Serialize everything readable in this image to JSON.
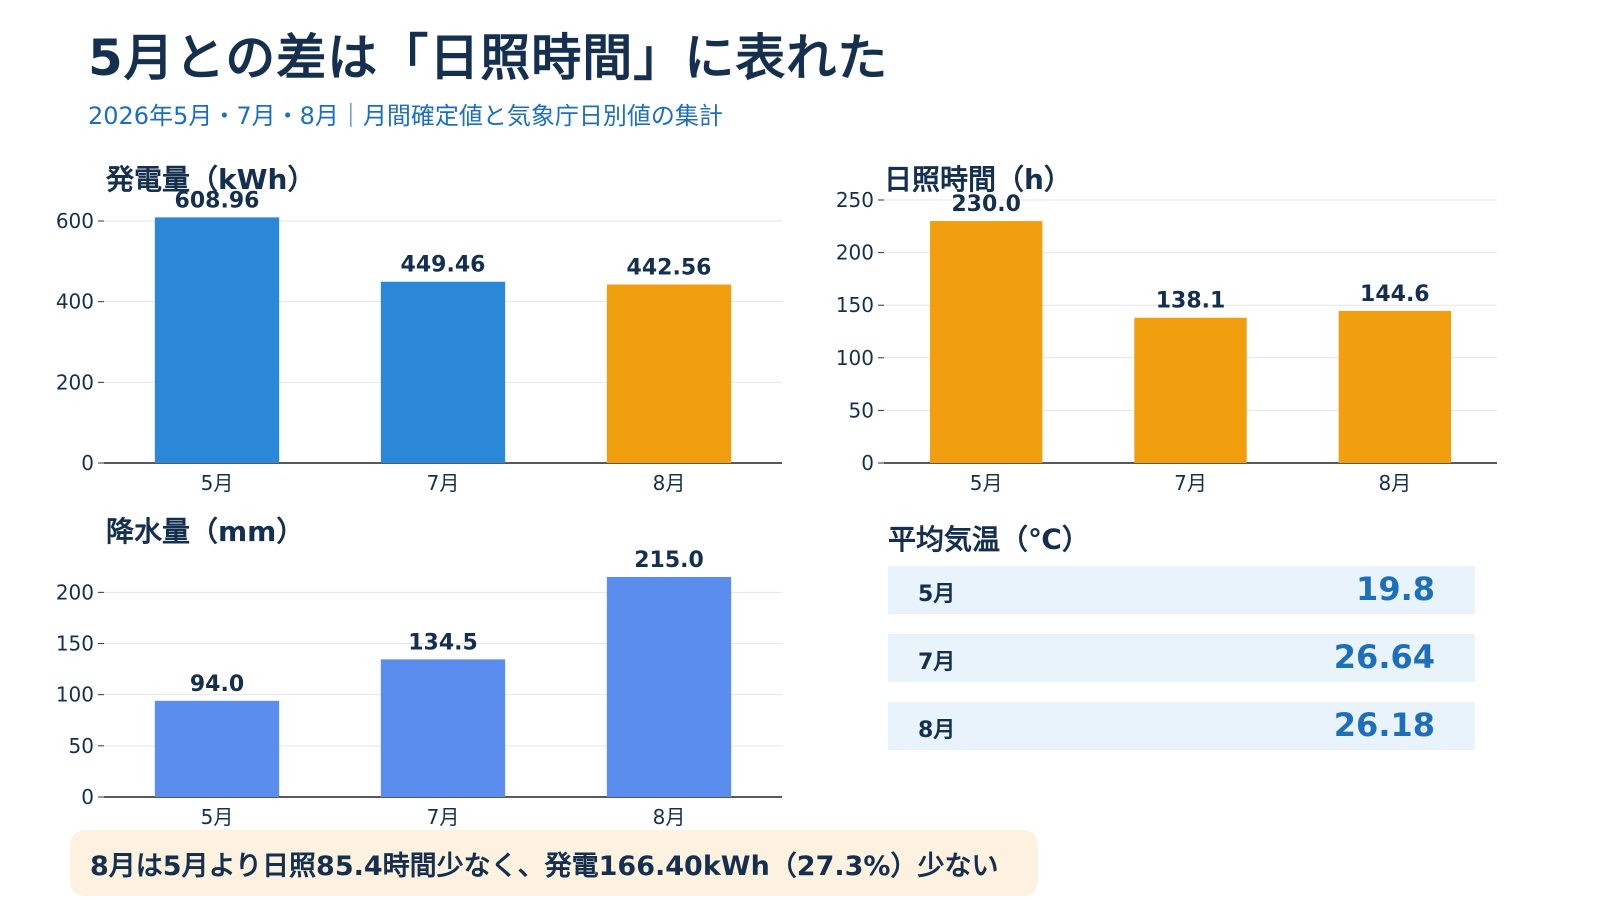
{
  "title": "5月との差は「日照時間」に表れた",
  "subtitle": "2026年5月・7月・8月｜月間確定値と気象庁日別値の集計",
  "colors": {
    "blue": "#2b88d8",
    "orange": "#f29f0f",
    "lightblue": "#5b8def",
    "navy": "#15304f",
    "accent": "#1d6fba"
  },
  "chart_data": [
    {
      "type": "bar",
      "title": "発電量（kWh）",
      "categories": [
        "5月",
        "7月",
        "8月"
      ],
      "values": [
        608.96,
        449.46,
        442.56
      ],
      "value_labels": [
        "608.96",
        "449.46",
        "442.56"
      ],
      "bar_colors": [
        "#2b88d8",
        "#2b88d8",
        "#f29f0f"
      ],
      "ylim": [
        0,
        600
      ],
      "yticks": [
        0,
        200,
        400,
        600
      ],
      "grid": true
    },
    {
      "type": "bar",
      "title": "日照時間（h）",
      "categories": [
        "5月",
        "7月",
        "8月"
      ],
      "values": [
        230.0,
        138.1,
        144.6
      ],
      "value_labels": [
        "230.0",
        "138.1",
        "144.6"
      ],
      "bar_colors": [
        "#f29f0f",
        "#f29f0f",
        "#f29f0f"
      ],
      "ylim": [
        0,
        250
      ],
      "yticks": [
        0,
        50,
        100,
        150,
        200,
        250
      ],
      "grid": true
    },
    {
      "type": "bar",
      "title": "降水量（mm）",
      "categories": [
        "5月",
        "7月",
        "8月"
      ],
      "values": [
        94.0,
        134.5,
        215.0
      ],
      "value_labels": [
        "94.0",
        "134.5",
        "215.0"
      ],
      "bar_colors": [
        "#5b8def",
        "#5b8def",
        "#5b8def"
      ],
      "ylim": [
        0,
        215
      ],
      "yticks": [
        0,
        50,
        100,
        150,
        200
      ],
      "grid": true
    },
    {
      "type": "table",
      "title": "平均気温（℃）",
      "rows": [
        {
          "month": "5月",
          "value": "19.8"
        },
        {
          "month": "7月",
          "value": "26.64"
        },
        {
          "month": "8月",
          "value": "26.18"
        }
      ]
    }
  ],
  "callout": "8月は5月より日照85.4時間少なく、発電166.40kWh（27.3%）少ない"
}
